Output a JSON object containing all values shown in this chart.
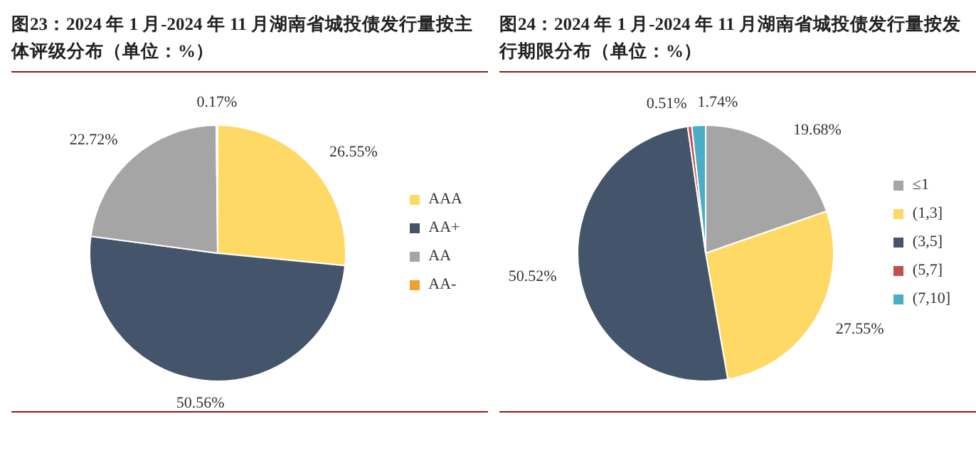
{
  "chart_data": [
    {
      "type": "pie",
      "title": "图23：2024 年 1 月-2024 年 11 月湖南省城投债发行量按主体评级分布（单位：%）",
      "categories": [
        "AAA",
        "AA+",
        "AA",
        "AA-"
      ],
      "values": [
        26.55,
        50.56,
        22.72,
        0.17
      ],
      "colors": [
        "#ffd966",
        "#44546a",
        "#a5a5a5",
        "#f0a030"
      ],
      "value_labels": [
        "26.55%",
        "50.56%",
        "22.72%",
        "0.17%"
      ],
      "legend": "right"
    },
    {
      "type": "pie",
      "title": "图24：2024 年 1 月-2024 年 11 月湖南省城投债发行量按发行期限分布（单位：%）",
      "categories": [
        "≤1",
        "(1,3]",
        "(3,5]",
        "(5,7]",
        "(7,10]"
      ],
      "values": [
        19.68,
        27.55,
        50.52,
        0.51,
        1.74
      ],
      "colors": [
        "#a5a5a5",
        "#ffd966",
        "#44546a",
        "#c0504d",
        "#4bacc6"
      ],
      "value_labels": [
        "19.68%",
        "27.55%",
        "50.52%",
        "0.51%",
        "1.74%"
      ],
      "legend": "right"
    }
  ]
}
